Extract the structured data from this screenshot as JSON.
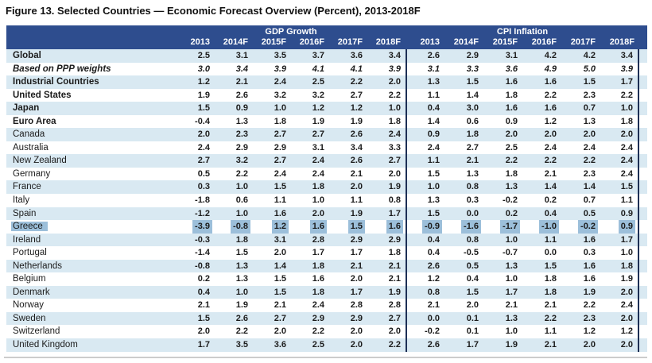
{
  "figure_title": "Figure 13. Selected Countries — Economic Forecast Overview (Percent), 2013-2018F",
  "colors": {
    "header_bg": "#2e4d8e",
    "stripe": "#d9e9f2",
    "highlight": "#9cbfda",
    "divider": "#1d2f55",
    "title_text": "#111111"
  },
  "table": {
    "column_groups": [
      {
        "label": "GDP Growth",
        "years": [
          "2013",
          "2014F",
          "2015F",
          "2016F",
          "2017F",
          "2018F"
        ]
      },
      {
        "label": "CPI Inflation",
        "years": [
          "2013",
          "2014F",
          "2015F",
          "2016F",
          "2017F",
          "2018F"
        ]
      }
    ],
    "rows": [
      {
        "name": "Global",
        "emphasis": "bold",
        "highlight": false,
        "gdp": [
          "2.5",
          "3.1",
          "3.5",
          "3.7",
          "3.6",
          "3.4"
        ],
        "cpi": [
          "2.6",
          "2.9",
          "3.1",
          "4.2",
          "4.2",
          "3.4"
        ]
      },
      {
        "name": "Based on PPP weights",
        "emphasis": "bold-italic",
        "highlight": false,
        "gdp": [
          "3.0",
          "3.4",
          "3.9",
          "4.1",
          "4.1",
          "3.9"
        ],
        "cpi": [
          "3.1",
          "3.3",
          "3.6",
          "4.9",
          "5.0",
          "3.9"
        ]
      },
      {
        "name": "Industrial Countries",
        "emphasis": "bold",
        "highlight": false,
        "gdp": [
          "1.2",
          "2.1",
          "2.4",
          "2.5",
          "2.2",
          "2.0"
        ],
        "cpi": [
          "1.3",
          "1.5",
          "1.6",
          "1.6",
          "1.5",
          "1.7"
        ]
      },
      {
        "name": "United States",
        "emphasis": "bold",
        "highlight": false,
        "gdp": [
          "1.9",
          "2.6",
          "3.2",
          "3.2",
          "2.7",
          "2.2"
        ],
        "cpi": [
          "1.1",
          "1.4",
          "1.8",
          "2.2",
          "2.3",
          "2.2"
        ]
      },
      {
        "name": "Japan",
        "emphasis": "bold",
        "highlight": false,
        "gdp": [
          "1.5",
          "0.9",
          "1.0",
          "1.2",
          "1.2",
          "1.0"
        ],
        "cpi": [
          "0.4",
          "3.0",
          "1.6",
          "1.6",
          "0.7",
          "1.0"
        ]
      },
      {
        "name": "Euro Area",
        "emphasis": "bold",
        "highlight": false,
        "gdp": [
          "-0.4",
          "1.3",
          "1.8",
          "1.9",
          "1.9",
          "1.8"
        ],
        "cpi": [
          "1.4",
          "0.6",
          "0.9",
          "1.2",
          "1.3",
          "1.8"
        ]
      },
      {
        "name": "Canada",
        "emphasis": "normal",
        "highlight": false,
        "gdp": [
          "2.0",
          "2.3",
          "2.7",
          "2.7",
          "2.6",
          "2.4"
        ],
        "cpi": [
          "0.9",
          "1.8",
          "2.0",
          "2.0",
          "2.0",
          "2.0"
        ]
      },
      {
        "name": "Australia",
        "emphasis": "normal",
        "highlight": false,
        "gdp": [
          "2.4",
          "2.9",
          "2.9",
          "3.1",
          "3.4",
          "3.3"
        ],
        "cpi": [
          "2.4",
          "2.7",
          "2.5",
          "2.4",
          "2.4",
          "2.4"
        ]
      },
      {
        "name": "New Zealand",
        "emphasis": "normal",
        "highlight": false,
        "gdp": [
          "2.7",
          "3.2",
          "2.7",
          "2.4",
          "2.6",
          "2.7"
        ],
        "cpi": [
          "1.1",
          "2.1",
          "2.2",
          "2.2",
          "2.2",
          "2.4"
        ]
      },
      {
        "name": "Germany",
        "emphasis": "normal",
        "highlight": false,
        "gdp": [
          "0.5",
          "2.2",
          "2.4",
          "2.4",
          "2.1",
          "2.0"
        ],
        "cpi": [
          "1.5",
          "1.3",
          "1.8",
          "2.1",
          "2.3",
          "2.4"
        ]
      },
      {
        "name": "France",
        "emphasis": "normal",
        "highlight": false,
        "gdp": [
          "0.3",
          "1.0",
          "1.5",
          "1.8",
          "2.0",
          "1.9"
        ],
        "cpi": [
          "1.0",
          "0.8",
          "1.3",
          "1.4",
          "1.4",
          "1.5"
        ]
      },
      {
        "name": "Italy",
        "emphasis": "normal",
        "highlight": false,
        "gdp": [
          "-1.8",
          "0.6",
          "1.1",
          "1.0",
          "1.1",
          "0.8"
        ],
        "cpi": [
          "1.3",
          "0.3",
          "-0.2",
          "0.2",
          "0.7",
          "1.1"
        ]
      },
      {
        "name": "Spain",
        "emphasis": "normal",
        "highlight": false,
        "gdp": [
          "-1.2",
          "1.0",
          "1.6",
          "2.0",
          "1.9",
          "1.7"
        ],
        "cpi": [
          "1.5",
          "0.0",
          "0.2",
          "0.4",
          "0.5",
          "0.9"
        ]
      },
      {
        "name": "Greece",
        "emphasis": "normal",
        "highlight": true,
        "gdp": [
          "-3.9",
          "-0.8",
          "1.2",
          "1.6",
          "1.5",
          "1.6"
        ],
        "cpi": [
          "-0.9",
          "-1.6",
          "-1.7",
          "-1.0",
          "-0.2",
          "0.9"
        ]
      },
      {
        "name": "Ireland",
        "emphasis": "normal",
        "highlight": false,
        "gdp": [
          "-0.3",
          "1.8",
          "3.1",
          "2.8",
          "2.9",
          "2.9"
        ],
        "cpi": [
          "0.4",
          "0.8",
          "1.0",
          "1.1",
          "1.6",
          "1.7"
        ]
      },
      {
        "name": "Portugal",
        "emphasis": "normal",
        "highlight": false,
        "gdp": [
          "-1.4",
          "1.5",
          "2.0",
          "1.7",
          "1.7",
          "1.8"
        ],
        "cpi": [
          "0.4",
          "-0.5",
          "-0.7",
          "0.0",
          "0.3",
          "1.0"
        ]
      },
      {
        "name": "Netherlands",
        "emphasis": "normal",
        "highlight": false,
        "gdp": [
          "-0.8",
          "1.3",
          "1.4",
          "1.8",
          "2.1",
          "2.1"
        ],
        "cpi": [
          "2.6",
          "0.5",
          "1.3",
          "1.5",
          "1.6",
          "1.8"
        ]
      },
      {
        "name": "Belgium",
        "emphasis": "normal",
        "highlight": false,
        "gdp": [
          "0.2",
          "1.3",
          "1.5",
          "1.6",
          "2.0",
          "2.1"
        ],
        "cpi": [
          "1.2",
          "0.4",
          "1.0",
          "1.8",
          "1.6",
          "1.9"
        ]
      },
      {
        "name": "Denmark",
        "emphasis": "normal",
        "highlight": false,
        "gdp": [
          "0.4",
          "1.0",
          "1.5",
          "1.8",
          "1.7",
          "1.9"
        ],
        "cpi": [
          "0.8",
          "1.5",
          "1.7",
          "1.8",
          "1.9",
          "2.0"
        ]
      },
      {
        "name": "Norway",
        "emphasis": "normal",
        "highlight": false,
        "gdp": [
          "2.1",
          "1.9",
          "2.1",
          "2.4",
          "2.8",
          "2.8"
        ],
        "cpi": [
          "2.1",
          "2.0",
          "2.1",
          "2.1",
          "2.2",
          "2.4"
        ]
      },
      {
        "name": "Sweden",
        "emphasis": "normal",
        "highlight": false,
        "gdp": [
          "1.5",
          "2.6",
          "2.7",
          "2.9",
          "2.9",
          "2.7"
        ],
        "cpi": [
          "0.0",
          "0.1",
          "1.3",
          "2.2",
          "2.3",
          "2.0"
        ]
      },
      {
        "name": "Switzerland",
        "emphasis": "normal",
        "highlight": false,
        "gdp": [
          "2.0",
          "2.2",
          "2.0",
          "2.2",
          "2.0",
          "2.0"
        ],
        "cpi": [
          "-0.2",
          "0.1",
          "1.0",
          "1.1",
          "1.2",
          "1.2"
        ]
      },
      {
        "name": "United Kingdom",
        "emphasis": "normal",
        "highlight": false,
        "gdp": [
          "1.7",
          "3.5",
          "3.6",
          "2.5",
          "2.0",
          "2.2"
        ],
        "cpi": [
          "2.6",
          "1.7",
          "1.9",
          "2.1",
          "2.0",
          "2.0"
        ]
      }
    ]
  }
}
